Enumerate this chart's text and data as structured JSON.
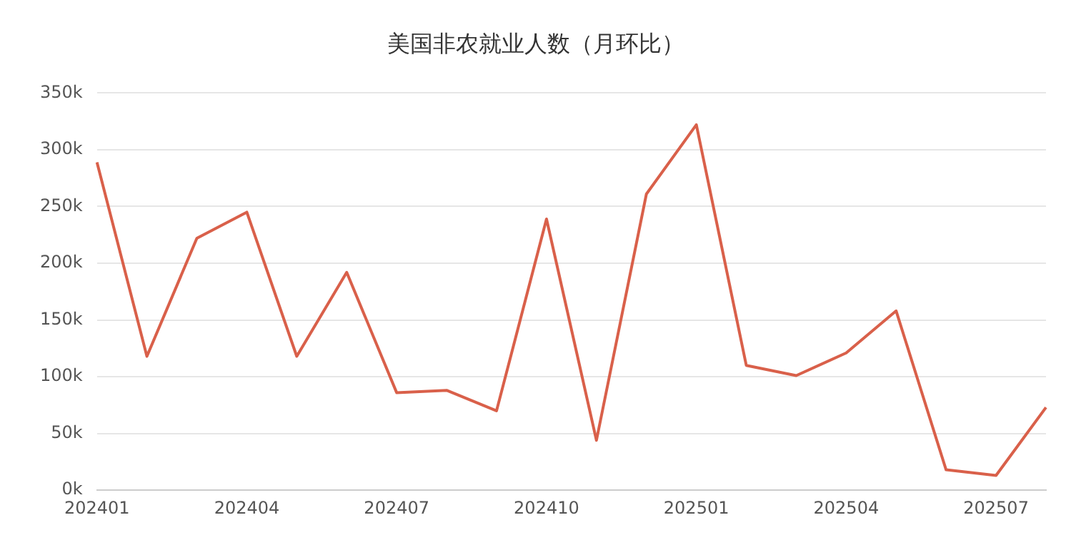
{
  "chart_data": {
    "type": "line",
    "title": "美国非农就业人数（月环比）",
    "categories": [
      "202401",
      null,
      null,
      "202404",
      null,
      null,
      "202407",
      null,
      null,
      "202410",
      null,
      null,
      "202501",
      null,
      null,
      "202504",
      null,
      null,
      "202507",
      null
    ],
    "series": [
      {
        "color": "#d9604a",
        "values": [
          289,
          118,
          222,
          245,
          118,
          192,
          86,
          88,
          70,
          239,
          44,
          261,
          322,
          110,
          101,
          121,
          158,
          18,
          13,
          73
        ]
      }
    ],
    "ylim": [
      0,
      350
    ],
    "yticks": [
      {
        "value": 0,
        "label": "0k"
      },
      {
        "value": 50,
        "label": "50k"
      },
      {
        "value": 100,
        "label": "100k"
      },
      {
        "value": 150,
        "label": "150k"
      },
      {
        "value": 200,
        "label": "200k"
      },
      {
        "value": 250,
        "label": "250k"
      },
      {
        "value": 300,
        "label": "300k"
      },
      {
        "value": 350,
        "label": "350k"
      }
    ],
    "grid": "y",
    "legend": false,
    "marker": "none",
    "line_style": "solid"
  }
}
